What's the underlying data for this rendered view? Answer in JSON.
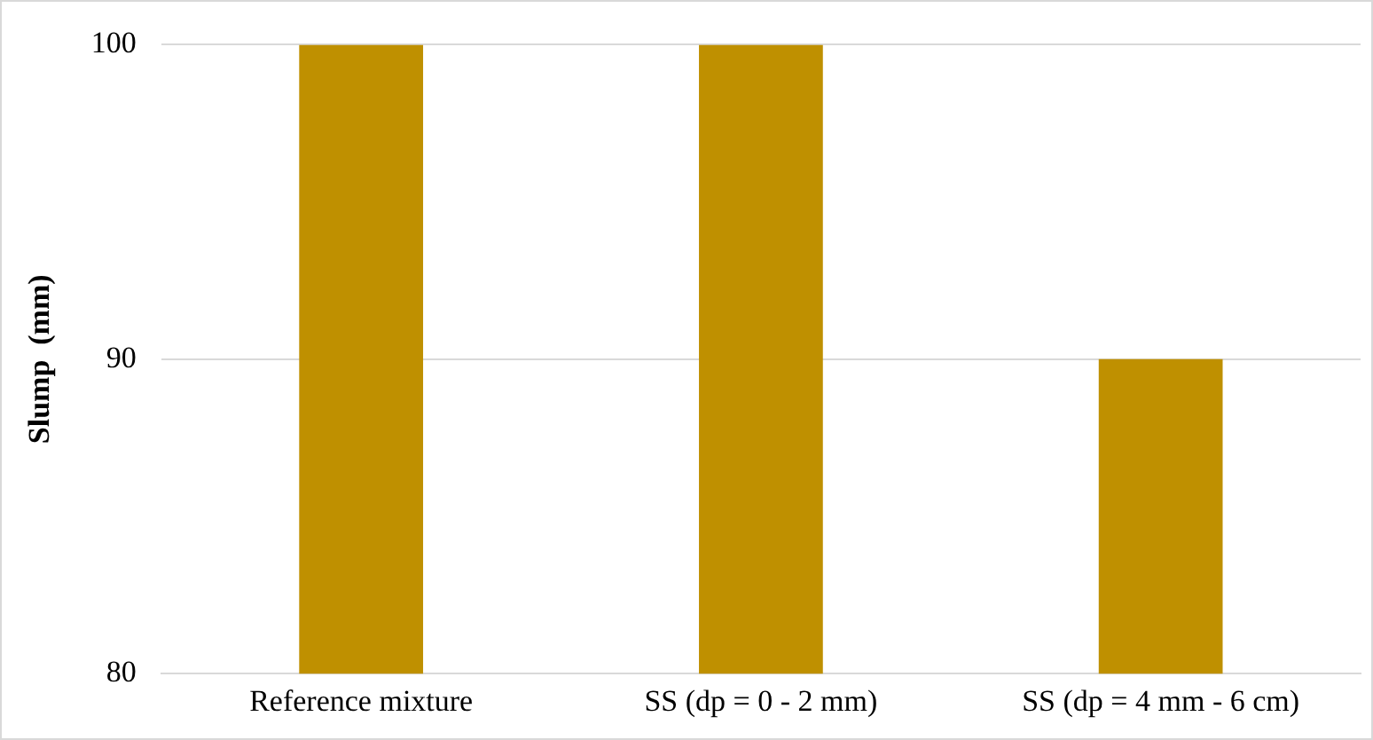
{
  "chart_data": {
    "type": "bar",
    "ylabel": "Slump  (mm)",
    "categories": [
      "Reference mixture",
      "SS (dp = 0 - 2 mm)",
      "SS (dp = 4 mm - 6 cm)"
    ],
    "values": [
      100,
      100,
      90
    ],
    "color": "#bf9000",
    "ylim": [
      80,
      100
    ],
    "yticks": [
      80,
      90,
      100
    ],
    "grid": "y"
  }
}
